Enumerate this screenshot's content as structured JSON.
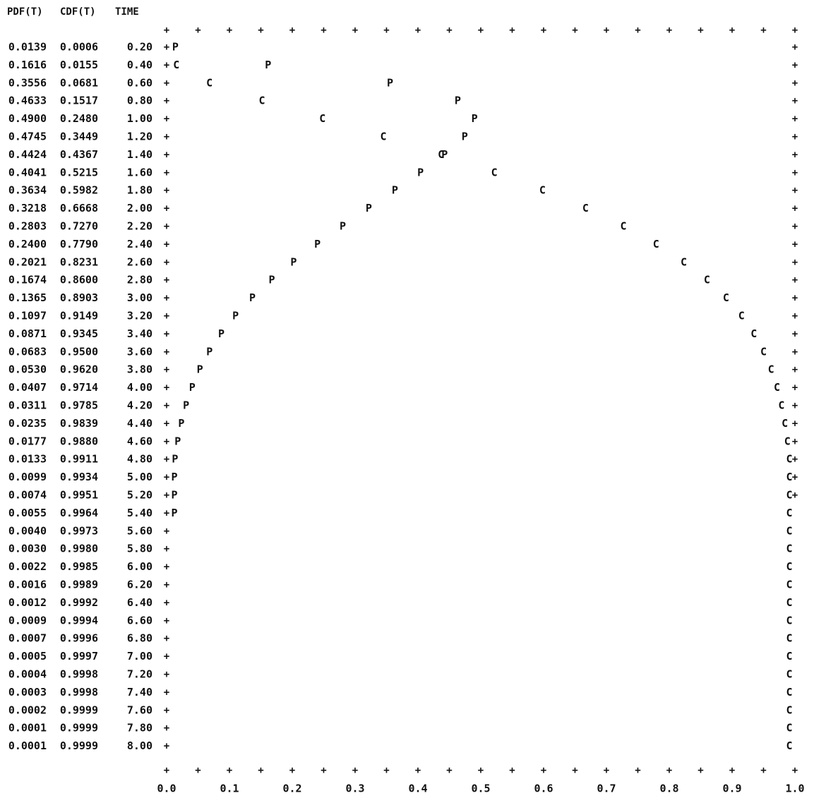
{
  "chart_data": {
    "type": "table",
    "headers": [
      "PDF(T)",
      "CDF(T)",
      "TIME"
    ],
    "rows": [
      [
        "0.0139",
        "0.0006",
        "0.20"
      ],
      [
        "0.1616",
        "0.0155",
        "0.40"
      ],
      [
        "0.3556",
        "0.0681",
        "0.60"
      ],
      [
        "0.4633",
        "0.1517",
        "0.80"
      ],
      [
        "0.4900",
        "0.2480",
        "1.00"
      ],
      [
        "0.4745",
        "0.3449",
        "1.20"
      ],
      [
        "0.4424",
        "0.4367",
        "1.40"
      ],
      [
        "0.4041",
        "0.5215",
        "1.60"
      ],
      [
        "0.3634",
        "0.5982",
        "1.80"
      ],
      [
        "0.3218",
        "0.6668",
        "2.00"
      ],
      [
        "0.2803",
        "0.7270",
        "2.20"
      ],
      [
        "0.2400",
        "0.7790",
        "2.40"
      ],
      [
        "0.2021",
        "0.8231",
        "2.60"
      ],
      [
        "0.1674",
        "0.8600",
        "2.80"
      ],
      [
        "0.1365",
        "0.8903",
        "3.00"
      ],
      [
        "0.1097",
        "0.9149",
        "3.20"
      ],
      [
        "0.0871",
        "0.9345",
        "3.40"
      ],
      [
        "0.0683",
        "0.9500",
        "3.60"
      ],
      [
        "0.0530",
        "0.9620",
        "3.80"
      ],
      [
        "0.0407",
        "0.9714",
        "4.00"
      ],
      [
        "0.0311",
        "0.9785",
        "4.20"
      ],
      [
        "0.0235",
        "0.9839",
        "4.40"
      ],
      [
        "0.0177",
        "0.9880",
        "4.60"
      ],
      [
        "0.0133",
        "0.9911",
        "4.80"
      ],
      [
        "0.0099",
        "0.9934",
        "5.00"
      ],
      [
        "0.0074",
        "0.9951",
        "5.20"
      ],
      [
        "0.0055",
        "0.9964",
        "5.40"
      ],
      [
        "0.0040",
        "0.9973",
        "5.60"
      ],
      [
        "0.0030",
        "0.9980",
        "5.80"
      ],
      [
        "0.0022",
        "0.9985",
        "6.00"
      ],
      [
        "0.0016",
        "0.9989",
        "6.20"
      ],
      [
        "0.0012",
        "0.9992",
        "6.40"
      ],
      [
        "0.0009",
        "0.9994",
        "6.60"
      ],
      [
        "0.0007",
        "0.9996",
        "6.80"
      ],
      [
        "0.0005",
        "0.9997",
        "7.00"
      ],
      [
        "0.0004",
        "0.9998",
        "7.20"
      ],
      [
        "0.0003",
        "0.9998",
        "7.40"
      ],
      [
        "0.0002",
        "0.9999",
        "7.60"
      ],
      [
        "0.0001",
        "0.9999",
        "7.80"
      ],
      [
        "0.0001",
        "0.9999",
        "8.00"
      ]
    ],
    "plot": {
      "type": "scatter",
      "x_ticks": [
        "0.0",
        "0.1",
        "0.2",
        "0.3",
        "0.4",
        "0.5",
        "0.6",
        "0.7",
        "0.8",
        "0.9",
        "1.0"
      ],
      "xlim": [
        0,
        1
      ],
      "pdf_marker": "P",
      "cdf_marker": "C",
      "border_marker": "+"
    }
  }
}
